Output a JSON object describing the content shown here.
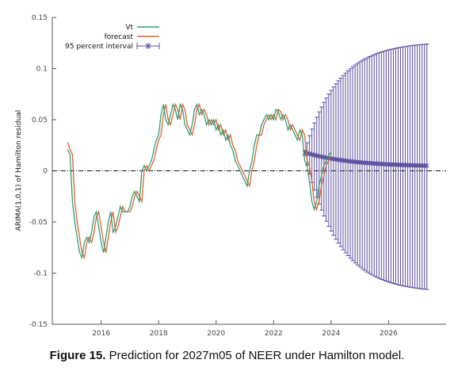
{
  "caption": {
    "label": "Figure 15.",
    "text": " Prediction for 2027m05 of NEER under Hamilton model."
  },
  "chart_data": {
    "type": "line",
    "title": "",
    "xlabel": "",
    "ylabel": "ARIMA(1,0,1) of Hamilton residual",
    "xlim": [
      2014.3,
      2028.0
    ],
    "ylim": [
      -0.15,
      0.15
    ],
    "xticks": [
      2016,
      2018,
      2020,
      2022,
      2024,
      2026
    ],
    "yticks": [
      -0.15,
      -0.1,
      -0.05,
      0,
      0.05,
      0.1,
      0.15
    ],
    "ytick_labels": [
      "-0.15",
      "-0.1",
      "-0.05",
      "0",
      "0.05",
      "0.1",
      "0.15"
    ],
    "grid": false,
    "legend_position": "top-left",
    "colors": {
      "Vt": "#2e9e7e",
      "forecast": "#e0622a",
      "interval": "#5a4fa0",
      "zero_line": "#111111"
    },
    "series": [
      {
        "name": "Vt",
        "x_start": 2014.833,
        "x_step": 0.0833,
        "values": [
          0.021,
          0.016,
          -0.03,
          -0.05,
          -0.065,
          -0.08,
          -0.085,
          -0.07,
          -0.065,
          -0.07,
          -0.06,
          -0.045,
          -0.04,
          -0.055,
          -0.07,
          -0.08,
          -0.065,
          -0.05,
          -0.04,
          -0.06,
          -0.055,
          -0.045,
          -0.035,
          -0.04,
          -0.04,
          -0.04,
          -0.035,
          -0.025,
          -0.02,
          -0.025,
          -0.03,
          0.0,
          0.005,
          0.0,
          0.005,
          0.01,
          0.02,
          0.03,
          0.035,
          0.055,
          0.065,
          0.05,
          0.045,
          0.055,
          0.065,
          0.06,
          0.05,
          0.065,
          0.06,
          0.045,
          0.04,
          0.035,
          0.045,
          0.06,
          0.065,
          0.055,
          0.06,
          0.055,
          0.045,
          0.05,
          0.045,
          0.05,
          0.04,
          0.045,
          0.035,
          0.04,
          0.03,
          0.035,
          0.025,
          0.02,
          0.01,
          0.005,
          0.0,
          -0.005,
          -0.01,
          -0.015,
          0.0,
          0.01,
          0.025,
          0.035,
          0.035,
          0.045,
          0.05,
          0.055,
          0.05,
          0.055,
          0.05,
          0.06,
          0.058,
          0.05,
          0.055,
          0.05,
          0.04,
          0.045,
          0.04,
          0.035,
          0.03,
          0.04,
          0.035,
          0.01,
          0.005,
          -0.01,
          -0.03,
          -0.038,
          -0.03,
          -0.015,
          -0.005,
          0.005,
          0.01,
          0.015,
          0.018
        ]
      },
      {
        "name": "forecast",
        "x_start": 2014.833,
        "x_step": 0.0833,
        "values": [
          0.028,
          0.021,
          0.016,
          -0.03,
          -0.05,
          -0.065,
          -0.08,
          -0.085,
          -0.07,
          -0.065,
          -0.07,
          -0.06,
          -0.045,
          -0.04,
          -0.055,
          -0.07,
          -0.08,
          -0.065,
          -0.05,
          -0.04,
          -0.06,
          -0.055,
          -0.045,
          -0.035,
          -0.04,
          -0.04,
          -0.04,
          -0.035,
          -0.025,
          -0.02,
          -0.025,
          -0.03,
          0.0,
          0.005,
          0.0,
          0.005,
          0.01,
          0.02,
          0.03,
          0.035,
          0.055,
          0.065,
          0.05,
          0.045,
          0.055,
          0.065,
          0.06,
          0.05,
          0.065,
          0.06,
          0.045,
          0.04,
          0.035,
          0.045,
          0.06,
          0.065,
          0.055,
          0.06,
          0.055,
          0.045,
          0.05,
          0.045,
          0.05,
          0.04,
          0.045,
          0.035,
          0.04,
          0.03,
          0.035,
          0.025,
          0.02,
          0.01,
          0.005,
          0.0,
          -0.005,
          -0.01,
          -0.015,
          0.0,
          0.01,
          0.025,
          0.035,
          0.035,
          0.045,
          0.05,
          0.055,
          0.05,
          0.055,
          0.05,
          0.06,
          0.058,
          0.05,
          0.055,
          0.05,
          0.04,
          0.045,
          0.04,
          0.035,
          0.03,
          0.04,
          0.035,
          0.01,
          0.005,
          -0.01,
          -0.03,
          -0.038,
          -0.03,
          -0.015,
          -0.005,
          0.005,
          0.01,
          0.015
        ]
      },
      {
        "name": "95 percent interval",
        "type": "errorbar",
        "x_start": 2023.083,
        "x_end": 2027.333,
        "point_start": 0.018,
        "point_end": 0.004,
        "upper_start": 0.02,
        "upper_end": 0.124,
        "lower_start": 0.015,
        "lower_end": -0.116
      }
    ]
  }
}
